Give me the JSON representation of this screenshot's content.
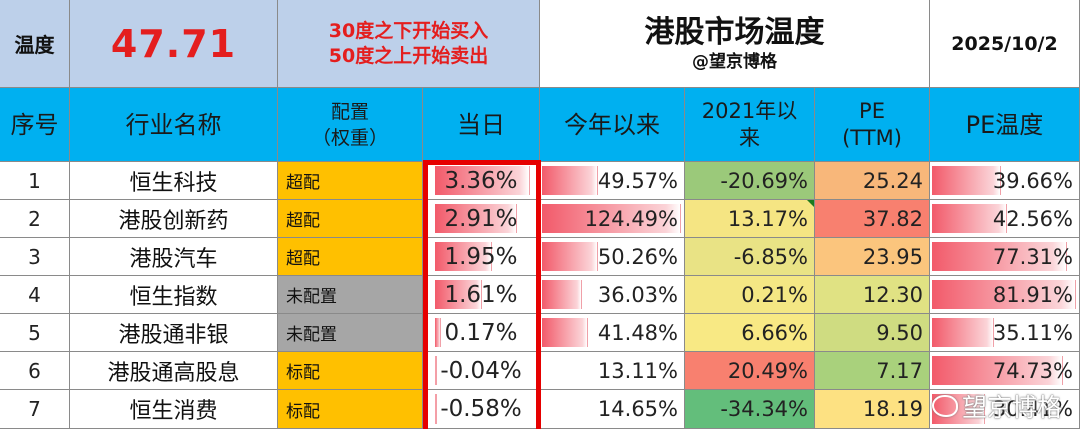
{
  "top": {
    "label": "温度",
    "value": "47.71",
    "note_line1": "30度之下开始买入",
    "note_line2": "50度之上开始卖出",
    "title": "港股市场温度",
    "subtitle": "@望京博格",
    "date": "2025/10/2"
  },
  "headers": {
    "idx": "序号",
    "name": "行业名称",
    "alloc_line1": "配置",
    "alloc_line2": "（权重）",
    "today": "当日",
    "ytd": "今年以来",
    "since2021_line1": "2021年以",
    "since2021_line2": "来",
    "pe_line1": "PE",
    "pe_line2": "(TTM)",
    "pe_temp": "PE温度"
  },
  "rows": [
    {
      "idx": "1",
      "name": "恒生科技",
      "alloc": "超配",
      "alloc_type": "over",
      "today": "3.36%",
      "today_frac": 0.92,
      "ytd": "49.57%",
      "ytd_frac": 0.4,
      "since2021": "-20.69%",
      "since2021_color": "#9bc97a",
      "pe": "25.24",
      "pe_color": "#f8b77a",
      "pe_temp": "39.66%",
      "pe_temp_frac": 0.48
    },
    {
      "idx": "2",
      "name": "港股创新药",
      "alloc": "超配",
      "alloc_type": "over",
      "today": "2.91%",
      "today_frac": 0.8,
      "ytd": "124.49%",
      "ytd_frac": 1.0,
      "since2021": "13.17%",
      "since2021_color": "#f5e583",
      "pe": "37.82",
      "pe_color": "#f8806f",
      "pe_temp": "42.56%",
      "pe_temp_frac": 0.52
    },
    {
      "idx": "3",
      "name": "港股汽车",
      "alloc": "超配",
      "alloc_type": "over",
      "today": "1.95%",
      "today_frac": 0.55,
      "ytd": "50.26%",
      "ytd_frac": 0.4,
      "since2021": "-6.85%",
      "since2021_color": "#e9e385",
      "pe": "23.95",
      "pe_color": "#fbc57d",
      "pe_temp": "77.31%",
      "pe_temp_frac": 0.94
    },
    {
      "idx": "4",
      "name": "恒生指数",
      "alloc": "未配置",
      "alloc_type": "none",
      "today": "1.61%",
      "today_frac": 0.46,
      "ytd": "36.03%",
      "ytd_frac": 0.29,
      "since2021": "0.21%",
      "since2021_color": "#f4e784",
      "pe": "12.30",
      "pe_color": "#e0e283",
      "pe_temp": "81.91%",
      "pe_temp_frac": 1.0
    },
    {
      "idx": "5",
      "name": "港股通非银",
      "alloc": "未配置",
      "alloc_type": "none",
      "today": "0.17%",
      "today_frac": 0.06,
      "ytd": "41.48%",
      "ytd_frac": 0.33,
      "since2021": "6.66%",
      "since2021_color": "#f8e984",
      "pe": "9.50",
      "pe_color": "#cfdc81",
      "pe_temp": "35.11%",
      "pe_temp_frac": 0.43
    },
    {
      "idx": "6",
      "name": "港股通高股息",
      "alloc": "标配",
      "alloc_type": "std",
      "today": "-0.04%",
      "today_frac": 0.01,
      "ytd": "13.11%",
      "ytd_frac": 0.0,
      "since2021": "20.49%",
      "since2021_color": "#f8806f",
      "pe": "7.17",
      "pe_color": "#a9d17c",
      "pe_temp": "74.73%",
      "pe_temp_frac": 0.91
    },
    {
      "idx": "7",
      "name": "恒生消费",
      "alloc": "标配",
      "alloc_type": "std",
      "today": "-0.58%",
      "today_frac": 0.0,
      "ytd": "14.65%",
      "ytd_frac": 0.0,
      "since2021": "-34.34%",
      "since2021_color": "#63be7b",
      "pe": "18.19",
      "pe_color": "#fde182",
      "pe_temp": "30.41%",
      "pe_temp_frac": 0.37
    }
  ],
  "watermark": "望京博格"
}
